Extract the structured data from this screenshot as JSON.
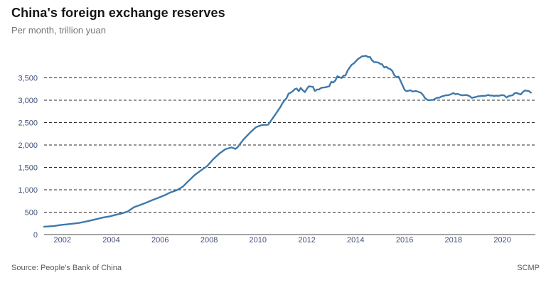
{
  "header": {
    "title": "China's foreign exchange reserves",
    "subtitle": "Per month, trillion yuan"
  },
  "footer": {
    "source": "Source: People's Bank of China",
    "brand": "SCMP"
  },
  "chart_data": {
    "type": "line",
    "title": "China's foreign exchange reserves",
    "subtitle": "Per month, trillion yuan",
    "grid": true,
    "legend": "none",
    "line_color": "#3e79ab",
    "xlabel": "",
    "ylabel": "",
    "x_domain": [
      2001.25,
      2021.35
    ],
    "y_domain": [
      0,
      4143
    ],
    "x_ticks": [
      2002,
      2004,
      2006,
      2008,
      2010,
      2012,
      2014,
      2016,
      2018,
      2020
    ],
    "y_ticks": [
      {
        "label": "0",
        "value": 0
      },
      {
        "label": "500",
        "value": 500
      },
      {
        "label": "1,000",
        "value": 1000
      },
      {
        "label": "1,500",
        "value": 1500
      },
      {
        "label": "2,000",
        "value": 2000
      },
      {
        "label": "2,500",
        "value": 2500
      },
      {
        "label": "3,000",
        "value": 3000
      },
      {
        "label": "3,500",
        "value": 3500
      }
    ],
    "series": [
      {
        "name": "Foreign exchange reserves",
        "points": [
          [
            2001.25,
            176
          ],
          [
            2001.42,
            181
          ],
          [
            2001.67,
            192
          ],
          [
            2001.92,
            212
          ],
          [
            2002.17,
            227
          ],
          [
            2002.42,
            243
          ],
          [
            2002.67,
            259
          ],
          [
            2002.92,
            286
          ],
          [
            2003.17,
            316
          ],
          [
            2003.42,
            347
          ],
          [
            2003.67,
            383
          ],
          [
            2003.92,
            403
          ],
          [
            2004.17,
            440
          ],
          [
            2004.42,
            471
          ],
          [
            2004.67,
            515
          ],
          [
            2004.92,
            610
          ],
          [
            2005.17,
            659
          ],
          [
            2005.42,
            711
          ],
          [
            2005.67,
            769
          ],
          [
            2005.92,
            819
          ],
          [
            2006.17,
            875
          ],
          [
            2006.42,
            941
          ],
          [
            2006.67,
            988
          ],
          [
            2006.92,
            1066
          ],
          [
            2007.17,
            1202
          ],
          [
            2007.42,
            1333
          ],
          [
            2007.67,
            1434
          ],
          [
            2007.92,
            1528
          ],
          [
            2008.17,
            1682
          ],
          [
            2008.42,
            1809
          ],
          [
            2008.67,
            1906
          ],
          [
            2008.92,
            1946
          ],
          [
            2009.08,
            1912
          ],
          [
            2009.17,
            1954
          ],
          [
            2009.42,
            2132
          ],
          [
            2009.67,
            2273
          ],
          [
            2009.92,
            2399
          ],
          [
            2010.17,
            2447
          ],
          [
            2010.42,
            2454
          ],
          [
            2010.67,
            2648
          ],
          [
            2010.92,
            2847
          ],
          [
            2011.0,
            2932
          ],
          [
            2011.08,
            2991
          ],
          [
            2011.17,
            3045
          ],
          [
            2011.25,
            3146
          ],
          [
            2011.33,
            3166
          ],
          [
            2011.42,
            3197
          ],
          [
            2011.5,
            3245
          ],
          [
            2011.58,
            3262
          ],
          [
            2011.67,
            3202
          ],
          [
            2011.75,
            3274
          ],
          [
            2011.83,
            3226
          ],
          [
            2011.92,
            3181
          ],
          [
            2012.0,
            3254
          ],
          [
            2012.08,
            3310
          ],
          [
            2012.17,
            3305
          ],
          [
            2012.25,
            3299
          ],
          [
            2012.33,
            3206
          ],
          [
            2012.42,
            3240
          ],
          [
            2012.5,
            3240
          ],
          [
            2012.58,
            3273
          ],
          [
            2012.67,
            3285
          ],
          [
            2012.75,
            3287
          ],
          [
            2012.83,
            3298
          ],
          [
            2012.92,
            3312
          ],
          [
            2013.0,
            3410
          ],
          [
            2013.08,
            3395
          ],
          [
            2013.17,
            3443
          ],
          [
            2013.25,
            3535
          ],
          [
            2013.33,
            3515
          ],
          [
            2013.42,
            3497
          ],
          [
            2013.5,
            3548
          ],
          [
            2013.58,
            3553
          ],
          [
            2013.67,
            3663
          ],
          [
            2013.75,
            3727
          ],
          [
            2013.83,
            3789
          ],
          [
            2013.92,
            3821
          ],
          [
            2014.0,
            3867
          ],
          [
            2014.08,
            3914
          ],
          [
            2014.17,
            3948
          ],
          [
            2014.25,
            3979
          ],
          [
            2014.33,
            3984
          ],
          [
            2014.42,
            3993
          ],
          [
            2014.5,
            3966
          ],
          [
            2014.58,
            3969
          ],
          [
            2014.67,
            3888
          ],
          [
            2014.75,
            3853
          ],
          [
            2014.83,
            3847
          ],
          [
            2014.92,
            3843
          ],
          [
            2015.0,
            3813
          ],
          [
            2015.08,
            3802
          ],
          [
            2015.17,
            3730
          ],
          [
            2015.25,
            3748
          ],
          [
            2015.33,
            3711
          ],
          [
            2015.42,
            3694
          ],
          [
            2015.5,
            3651
          ],
          [
            2015.58,
            3557
          ],
          [
            2015.67,
            3514
          ],
          [
            2015.75,
            3526
          ],
          [
            2015.83,
            3438
          ],
          [
            2015.92,
            3330
          ],
          [
            2016.0,
            3231
          ],
          [
            2016.08,
            3202
          ],
          [
            2016.17,
            3213
          ],
          [
            2016.25,
            3220
          ],
          [
            2016.33,
            3192
          ],
          [
            2016.42,
            3205
          ],
          [
            2016.5,
            3201
          ],
          [
            2016.58,
            3185
          ],
          [
            2016.67,
            3166
          ],
          [
            2016.75,
            3121
          ],
          [
            2016.83,
            3052
          ],
          [
            2016.92,
            3011
          ],
          [
            2017.0,
            2998
          ],
          [
            2017.08,
            3005
          ],
          [
            2017.17,
            3009
          ],
          [
            2017.25,
            3030
          ],
          [
            2017.33,
            3054
          ],
          [
            2017.42,
            3057
          ],
          [
            2017.5,
            3081
          ],
          [
            2017.58,
            3092
          ],
          [
            2017.67,
            3109
          ],
          [
            2017.75,
            3109
          ],
          [
            2017.83,
            3119
          ],
          [
            2017.92,
            3140
          ],
          [
            2018.0,
            3161
          ],
          [
            2018.08,
            3134
          ],
          [
            2018.17,
            3143
          ],
          [
            2018.25,
            3125
          ],
          [
            2018.33,
            3111
          ],
          [
            2018.42,
            3112
          ],
          [
            2018.5,
            3118
          ],
          [
            2018.58,
            3110
          ],
          [
            2018.67,
            3087
          ],
          [
            2018.75,
            3053
          ],
          [
            2018.83,
            3062
          ],
          [
            2018.92,
            3073
          ],
          [
            2019.0,
            3088
          ],
          [
            2019.08,
            3090
          ],
          [
            2019.17,
            3099
          ],
          [
            2019.25,
            3095
          ],
          [
            2019.33,
            3101
          ],
          [
            2019.42,
            3119
          ],
          [
            2019.5,
            3104
          ],
          [
            2019.58,
            3107
          ],
          [
            2019.67,
            3092
          ],
          [
            2019.75,
            3105
          ],
          [
            2019.83,
            3096
          ],
          [
            2019.92,
            3108
          ],
          [
            2020.0,
            3115
          ],
          [
            2020.08,
            3107
          ],
          [
            2020.17,
            3061
          ],
          [
            2020.25,
            3091
          ],
          [
            2020.33,
            3102
          ],
          [
            2020.42,
            3112
          ],
          [
            2020.5,
            3154
          ],
          [
            2020.58,
            3165
          ],
          [
            2020.67,
            3143
          ],
          [
            2020.75,
            3128
          ],
          [
            2020.83,
            3178
          ],
          [
            2020.92,
            3217
          ],
          [
            2021.0,
            3211
          ],
          [
            2021.08,
            3205
          ],
          [
            2021.17,
            3170
          ]
        ]
      }
    ]
  }
}
